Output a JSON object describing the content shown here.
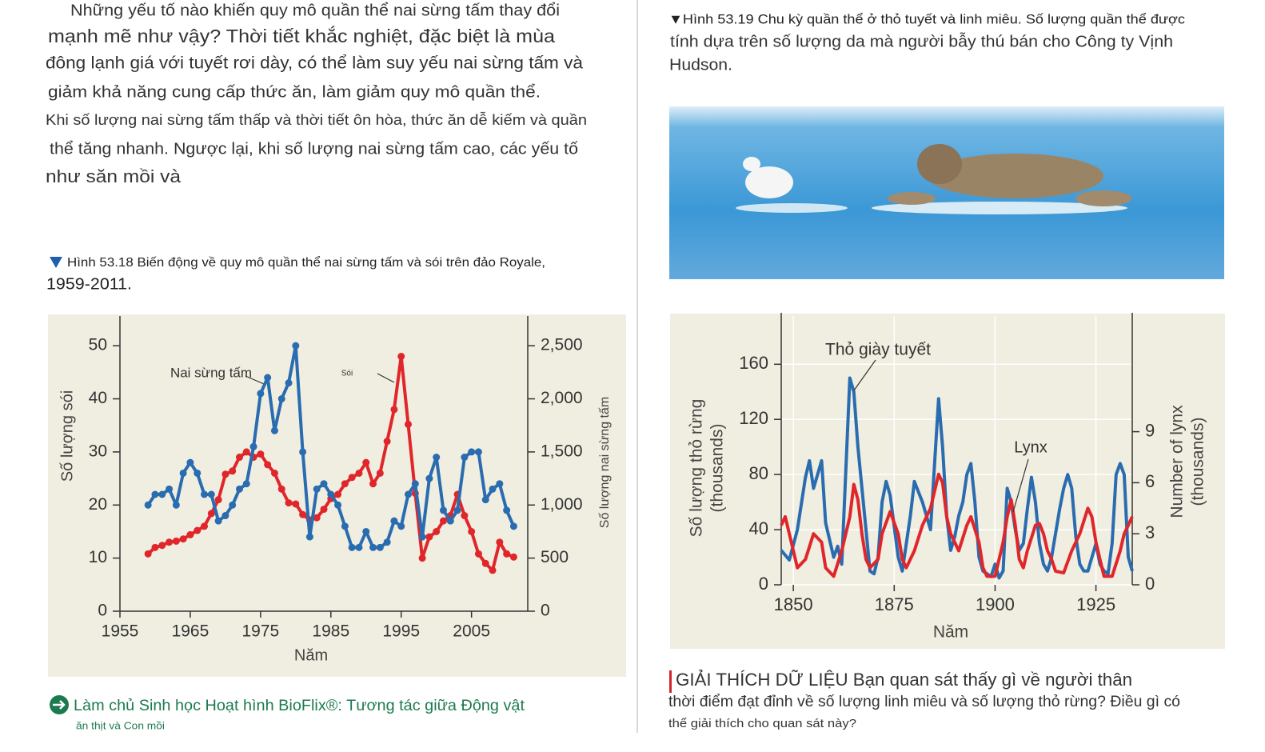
{
  "left_text": {
    "lines": [
      "Những yếu tố nào khiến quy mô quần thể nai sừng tấm thay đổi",
      "mạnh mẽ như vậy? Thời tiết khắc nghiệt, đặc biệt là mùa",
      "đông lạnh giá với tuyết rơi dày, có thể làm suy yếu nai sừng tấm và",
      "giảm khả năng cung cấp thức ăn, làm giảm quy mô quần thể.",
      "Khi số lượng nai sừng tấm thấp và thời tiết ôn hòa, thức ăn dễ kiếm và quần",
      "thể tăng nhanh. Ngược lại, khi số lượng nai sừng tấm cao, các yếu tố",
      "như săn mồi và"
    ]
  },
  "figure_left": {
    "caption": [
      "Hình 53.18 Biến động về quy mô quần thể nai sừng tấm và sói trên đảo Royale,",
      "1959-2011."
    ]
  },
  "figure_right": {
    "caption": [
      "▼Hình 53.19 Chu kỳ quần thể ở thỏ tuyết và linh miêu. Số lượng quần thể được",
      "tính dựa trên số lượng da mà người bẫy thú bán cho Công ty Vịnh",
      "Hudson."
    ]
  },
  "link": {
    "lines": [
      "Làm chủ Sinh học Hoạt hình BioFlix®: Tương tác giữa Động vật",
      "ăn thịt và Con mồi"
    ]
  },
  "interpret": {
    "lines": [
      "GIẢI THÍCH DỮ LIỆU Bạn quan sát thấy gì về người thân",
      "thời điểm đạt đỉnh về số lượng linh miêu và số lượng thỏ rừng? Điều gì có",
      "thể giải thích cho quan sát này?"
    ]
  },
  "chart_data": [
    {
      "type": "line",
      "x_label": "Năm",
      "y_label": "Số lượng sói",
      "y2_label": "Số lượng nai sừng tấm",
      "x": [
        1959,
        1960,
        1961,
        1962,
        1963,
        1964,
        1965,
        1966,
        1967,
        1968,
        1969,
        1970,
        1971,
        1972,
        1973,
        1974,
        1975,
        1976,
        1977,
        1978,
        1979,
        1980,
        1981,
        1982,
        1983,
        1984,
        1985,
        1986,
        1987,
        1988,
        1989,
        1990,
        1991,
        1992,
        1993,
        1994,
        1995,
        1996,
        1997,
        1998,
        1999,
        2000,
        2001,
        2002,
        2003,
        2004,
        2005,
        2006,
        2007,
        2008,
        2009,
        2010,
        2011
      ],
      "series": [
        {
          "name": "Nai sừng tấm",
          "color": "#e0262b",
          "axis": "y2",
          "values": [
            540,
            600,
            620,
            650,
            660,
            680,
            720,
            760,
            800,
            920,
            1050,
            1290,
            1320,
            1450,
            1500,
            1450,
            1480,
            1380,
            1300,
            1150,
            1020,
            1010,
            910,
            860,
            880,
            960,
            1060,
            1100,
            1200,
            1260,
            1300,
            1400,
            1200,
            1300,
            1600,
            1900,
            2400,
            1760,
            1110,
            500,
            700,
            750,
            850,
            900,
            1100,
            900,
            750,
            540,
            450,
            385,
            650,
            540,
            510
          ]
        },
        {
          "name": "Sói",
          "color": "#2a6cb0",
          "values": [
            20,
            22,
            22,
            23,
            20,
            26,
            28,
            26,
            22,
            22,
            17,
            18,
            20,
            23,
            24,
            31,
            41,
            44,
            34,
            40,
            43,
            50,
            30,
            14,
            23,
            24,
            22,
            20,
            16,
            12,
            12,
            15,
            12,
            12,
            13,
            17,
            16,
            22,
            24,
            14,
            25,
            29,
            19,
            17,
            19,
            29,
            30,
            30,
            21,
            23,
            24,
            19,
            16
          ]
        }
      ],
      "xlim": [
        1955,
        2013
      ],
      "xticks": [
        1955,
        1965,
        1975,
        1985,
        1995,
        2005
      ],
      "ylim": [
        0,
        55
      ],
      "yticks": [
        0,
        10,
        20,
        30,
        40,
        50
      ],
      "y2lim": [
        0,
        2750
      ],
      "y2ticks": [
        0,
        500,
        {
          "value": 1000,
          "label": "1,000"
        },
        {
          "value": 1500,
          "label": "1,500"
        },
        {
          "value": 2000,
          "label": "2,000"
        },
        {
          "value": 2500,
          "label": "2,500"
        }
      ],
      "grid": false,
      "markers": true
    },
    {
      "type": "line",
      "x_label": "Năm",
      "y_label": [
        "Số lượng thỏ rừng",
        "(thousands)"
      ],
      "y2_label": [
        "Number of lynx",
        "(thousands)"
      ],
      "series": [
        {
          "name": "Thỏ giày tuyết",
          "color": "#2a6cb0",
          "x": [
            1847,
            1849,
            1851,
            1853,
            1854,
            1855,
            1857,
            1858,
            1860,
            1861,
            1862,
            1864,
            1865,
            1866,
            1868,
            1869,
            1870,
            1871,
            1872,
            1873,
            1874,
            1876,
            1877,
            1879,
            1880,
            1882,
            1884,
            1886,
            1887,
            1888,
            1889,
            1890,
            1891,
            1892,
            1893,
            1894,
            1895,
            1896,
            1897,
            1899,
            1900,
            1901,
            1902,
            1903,
            1904,
            1905,
            1906,
            1907,
            1908,
            1909,
            1910,
            1911,
            1912,
            1913,
            1914,
            1916,
            1917,
            1918,
            1919,
            1920,
            1921,
            1922,
            1923,
            1925,
            1926,
            1927,
            1928,
            1929,
            1930,
            1931,
            1932,
            1933,
            1934
          ],
          "values": [
            25,
            18,
            40,
            78,
            90,
            70,
            90,
            45,
            20,
            28,
            15,
            150,
            140,
            100,
            40,
            10,
            8,
            20,
            60,
            75,
            65,
            20,
            10,
            50,
            75,
            60,
            40,
            135,
            100,
            50,
            25,
            35,
            50,
            60,
            80,
            88,
            60,
            20,
            10,
            6,
            15,
            5,
            10,
            70,
            60,
            40,
            25,
            30,
            55,
            78,
            60,
            30,
            15,
            10,
            20,
            55,
            70,
            80,
            70,
            35,
            15,
            10,
            10,
            30,
            15,
            10,
            8,
            30,
            80,
            88,
            80,
            20,
            10
          ]
        },
        {
          "name": "Lynx",
          "color": "#e0262b",
          "axis": "y2",
          "x": [
            1847,
            1848,
            1849,
            1851,
            1853,
            1855,
            1857,
            1858,
            1860,
            1862,
            1864,
            1865,
            1866,
            1867,
            1868,
            1869,
            1871,
            1872,
            1874,
            1876,
            1877,
            1878,
            1880,
            1882,
            1884,
            1886,
            1887,
            1888,
            1889,
            1891,
            1893,
            1894,
            1896,
            1897,
            1898,
            1900,
            1902,
            1903,
            1904,
            1905,
            1906,
            1907,
            1908,
            1910,
            1911,
            1912,
            1913,
            1914,
            1915,
            1917,
            1919,
            1921,
            1923,
            1924,
            1925,
            1926,
            1927,
            1929,
            1931,
            1932,
            1933,
            1934
          ],
          "values": [
            3.5,
            4,
            3,
            1,
            1.5,
            3,
            2.5,
            1,
            0.5,
            2,
            4,
            5.9,
            5,
            3,
            1.5,
            1,
            1.5,
            3,
            4.3,
            3,
            1.5,
            1,
            2,
            3.5,
            4.5,
            6.5,
            6,
            4,
            3,
            2,
            3.5,
            4,
            2.5,
            1,
            0.5,
            0.5,
            2.5,
            4,
            5,
            3.5,
            1.5,
            1,
            2,
            3.5,
            3.6,
            3,
            2,
            1.5,
            0.8,
            0.7,
            2,
            3,
            4.5,
            4,
            2.5,
            1.5,
            0.5,
            0.5,
            2,
            3,
            3.5,
            4
          ]
        }
      ],
      "xlim": [
        1847,
        1934
      ],
      "xticks": [
        1850,
        1875,
        1900,
        1925
      ],
      "ylim": [
        0,
        195
      ],
      "yticks": [
        0,
        40,
        80,
        120,
        160
      ],
      "y2lim": [
        0,
        15.8
      ],
      "y2ticks": [
        0,
        3,
        6,
        9
      ],
      "grid": true,
      "markers": false
    }
  ]
}
